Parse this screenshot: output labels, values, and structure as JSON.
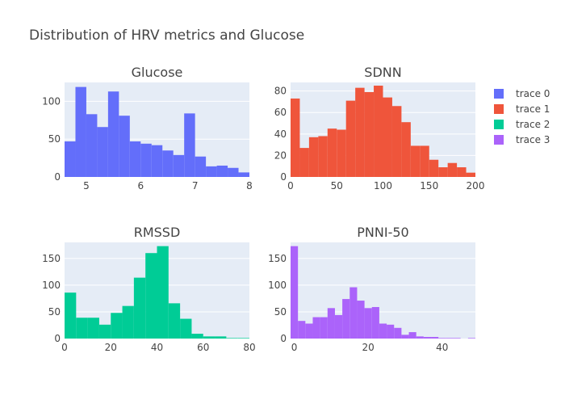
{
  "title": "Distribution of HRV metrics and Glucose",
  "legend": [
    {
      "name": "trace 0",
      "color": "#636efa"
    },
    {
      "name": "trace 1",
      "color": "#ef553b"
    },
    {
      "name": "trace 2",
      "color": "#00cc96"
    },
    {
      "name": "trace 3",
      "color": "#ab63fa"
    }
  ],
  "chart_data": [
    {
      "type": "bar",
      "subtitle": "Glucose",
      "series_name": "trace 0",
      "color": "#636efa",
      "xlim": [
        4.6,
        8
      ],
      "ylim": [
        0,
        125
      ],
      "xticks": [
        5,
        6,
        7,
        8
      ],
      "yticks": [
        0,
        50,
        100
      ],
      "bin_start": 4.6,
      "bin_width": 0.2,
      "values": [
        47,
        119,
        83,
        66,
        113,
        81,
        47,
        44,
        42,
        35,
        29,
        84,
        27,
        14,
        15,
        12,
        6
      ]
    },
    {
      "type": "bar",
      "subtitle": "SDNN",
      "series_name": "trace 1",
      "color": "#ef553b",
      "xlim": [
        0,
        200
      ],
      "ylim": [
        0,
        88
      ],
      "xticks": [
        0,
        50,
        100,
        150,
        200
      ],
      "yticks": [
        0,
        20,
        40,
        60,
        80
      ],
      "bin_start": 0,
      "bin_width": 10,
      "values": [
        73,
        27,
        37,
        38,
        45,
        44,
        71,
        83,
        79,
        85,
        74,
        66,
        51,
        29,
        29,
        16,
        9,
        13,
        9,
        4
      ]
    },
    {
      "type": "bar",
      "subtitle": "RMSSD",
      "series_name": "trace 2",
      "color": "#00cc96",
      "xlim": [
        0,
        80
      ],
      "ylim": [
        0,
        180
      ],
      "xticks": [
        0,
        20,
        40,
        60,
        80
      ],
      "yticks": [
        0,
        50,
        100,
        150
      ],
      "bin_start": 0,
      "bin_width": 5,
      "values": [
        86,
        39,
        39,
        26,
        48,
        61,
        114,
        160,
        173,
        66,
        37,
        9,
        4,
        4,
        1,
        1
      ]
    },
    {
      "type": "bar",
      "subtitle": "PNNI-50",
      "series_name": "trace 3",
      "color": "#ab63fa",
      "xlim": [
        -1,
        49
      ],
      "ylim": [
        0,
        180
      ],
      "xticks": [
        0,
        20,
        40
      ],
      "yticks": [
        0,
        50,
        100,
        150
      ],
      "bin_start": -1,
      "bin_width": 2,
      "values": [
        173,
        33,
        28,
        40,
        40,
        57,
        44,
        74,
        96,
        71,
        57,
        59,
        28,
        26,
        20,
        7,
        12,
        4,
        3,
        3,
        1,
        1,
        1,
        0,
        1
      ]
    }
  ]
}
